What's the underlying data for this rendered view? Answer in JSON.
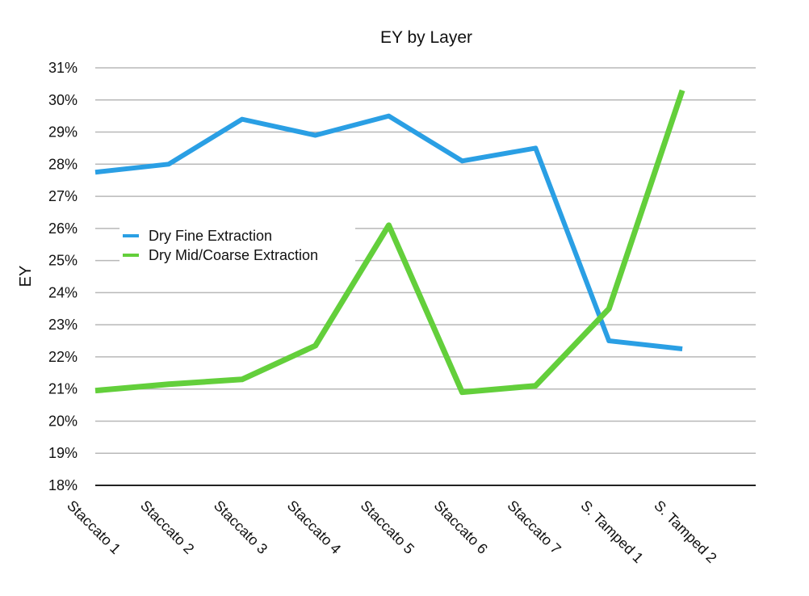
{
  "chart_data": {
    "type": "line",
    "title": "EY by Layer",
    "xlabel": "",
    "ylabel": "EY",
    "categories": [
      "Staccato 1",
      "Staccato 2",
      "Staccato 3",
      "Staccato 4",
      "Staccato 5",
      "Staccato 6",
      "Staccato 7",
      "S. Tamped 1",
      "S. Tamped 2"
    ],
    "ylim": [
      18,
      31
    ],
    "y_ticks": [
      "18%",
      "19%",
      "20%",
      "21%",
      "22%",
      "23%",
      "24%",
      "25%",
      "26%",
      "27%",
      "28%",
      "29%",
      "30%",
      "31%"
    ],
    "y_tick_values": [
      18,
      19,
      20,
      21,
      22,
      23,
      24,
      25,
      26,
      27,
      28,
      29,
      30,
      31
    ],
    "grid": true,
    "legend_position": "center-left",
    "series": [
      {
        "name": "Dry Fine Extraction",
        "color": "#2a9fe4",
        "values": [
          27.75,
          28.0,
          29.4,
          28.9,
          29.5,
          28.1,
          28.5,
          22.5,
          22.25
        ]
      },
      {
        "name": "Dry Mid/Coarse Extraction",
        "color": "#63cf3b",
        "values": [
          20.95,
          21.15,
          21.3,
          22.35,
          26.1,
          20.9,
          21.1,
          23.5,
          30.3
        ]
      }
    ]
  }
}
